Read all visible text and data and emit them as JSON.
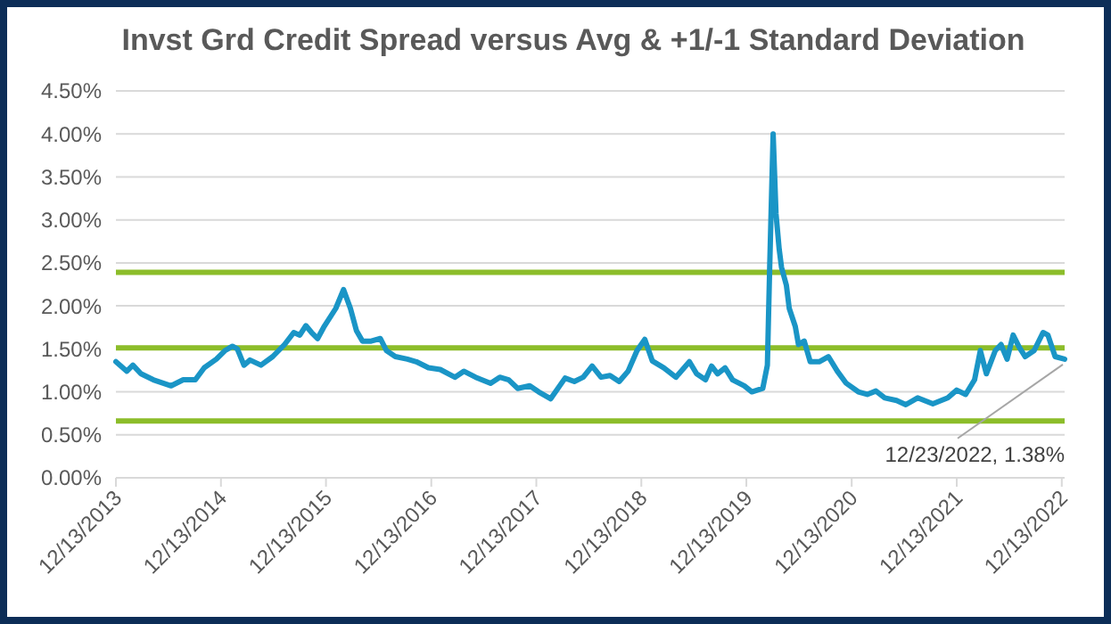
{
  "chart_data": {
    "type": "line",
    "title": "Invst Grd Credit Spread versus Avg & +1/-1 Standard Deviation",
    "x": [
      "2013-12-13",
      "2014-01-20",
      "2014-02-10",
      "2014-03-10",
      "2014-04-22",
      "2014-06-23",
      "2014-08-04",
      "2014-09-15",
      "2014-10-16",
      "2014-11-27",
      "2014-12-27",
      "2015-01-22",
      "2015-02-08",
      "2015-03-03",
      "2015-03-24",
      "2015-05-01",
      "2015-06-11",
      "2015-07-22",
      "2015-08-23",
      "2015-09-13",
      "2015-10-04",
      "2015-10-24",
      "2015-11-14",
      "2015-12-05",
      "2016-01-16",
      "2016-02-12",
      "2016-03-07",
      "2016-03-28",
      "2016-04-18",
      "2016-05-18",
      "2016-06-19",
      "2016-07-10",
      "2016-08-10",
      "2016-09-21",
      "2016-10-22",
      "2016-12-03",
      "2017-01-13",
      "2017-03-05",
      "2017-04-05",
      "2017-05-16",
      "2017-07-07",
      "2017-08-08",
      "2017-09-08",
      "2017-10-09",
      "2017-11-20",
      "2017-12-21",
      "2018-02-01",
      "2018-03-23",
      "2018-04-24",
      "2018-05-25",
      "2018-06-25",
      "2018-07-26",
      "2018-08-26",
      "2018-09-27",
      "2018-10-28",
      "2018-11-28",
      "2018-12-25",
      "2019-01-20",
      "2019-03-01",
      "2019-04-12",
      "2019-05-29",
      "2019-06-23",
      "2019-07-24",
      "2019-08-14",
      "2019-09-04",
      "2019-09-30",
      "2019-10-26",
      "2019-12-06",
      "2020-01-01",
      "2020-02-08",
      "2020-02-24",
      "2020-03-03",
      "2020-03-15",
      "2020-03-25",
      "2020-04-05",
      "2020-04-13",
      "2020-04-30",
      "2020-05-10",
      "2020-05-31",
      "2020-06-11",
      "2020-07-01",
      "2020-07-22",
      "2020-08-22",
      "2020-09-23",
      "2020-10-24",
      "2020-11-24",
      "2021-01-05",
      "2021-02-05",
      "2021-03-07",
      "2021-04-07",
      "2021-05-18",
      "2021-06-19",
      "2021-07-30",
      "2021-09-21",
      "2021-11-12",
      "2021-12-13",
      "2022-01-13",
      "2022-02-13",
      "2022-03-05",
      "2022-03-26",
      "2022-04-26",
      "2022-05-16",
      "2022-06-06",
      "2022-06-27",
      "2022-07-18",
      "2022-08-08",
      "2022-09-08",
      "2022-10-09",
      "2022-10-26",
      "2022-11-20",
      "2022-12-23"
    ],
    "series": [
      {
        "color": "#1a95c6",
        "values": [
          1.35,
          1.24,
          1.31,
          1.21,
          1.14,
          1.07,
          1.14,
          1.14,
          1.28,
          1.38,
          1.48,
          1.53,
          1.5,
          1.31,
          1.37,
          1.31,
          1.41,
          1.55,
          1.69,
          1.66,
          1.77,
          1.69,
          1.62,
          1.75,
          1.97,
          2.19,
          1.97,
          1.71,
          1.59,
          1.59,
          1.62,
          1.48,
          1.41,
          1.38,
          1.35,
          1.28,
          1.26,
          1.17,
          1.24,
          1.17,
          1.1,
          1.17,
          1.14,
          1.04,
          1.07,
          1.0,
          0.92,
          1.16,
          1.12,
          1.17,
          1.3,
          1.17,
          1.19,
          1.12,
          1.24,
          1.48,
          1.61,
          1.36,
          1.28,
          1.17,
          1.35,
          1.21,
          1.14,
          1.3,
          1.21,
          1.28,
          1.14,
          1.07,
          1.0,
          1.04,
          1.31,
          2.45,
          4.0,
          3.07,
          2.66,
          2.45,
          2.24,
          1.97,
          1.76,
          1.55,
          1.59,
          1.35,
          1.35,
          1.41,
          1.24,
          1.1,
          1.0,
          0.97,
          1.01,
          0.93,
          0.9,
          0.85,
          0.93,
          0.86,
          0.93,
          1.02,
          0.97,
          1.14,
          1.48,
          1.21,
          1.48,
          1.55,
          1.38,
          1.66,
          1.52,
          1.41,
          1.48,
          1.69,
          1.66,
          1.41,
          1.38
        ]
      }
    ],
    "xlim": [
      "2013-12-13",
      "2022-12-23"
    ],
    "xticks": [
      {
        "value": "2013-12-13",
        "label": "12/13/2013"
      },
      {
        "value": "2014-12-13",
        "label": "12/13/2014"
      },
      {
        "value": "2015-12-13",
        "label": "12/13/2015"
      },
      {
        "value": "2016-12-13",
        "label": "12/13/2016"
      },
      {
        "value": "2017-12-13",
        "label": "12/13/2017"
      },
      {
        "value": "2018-12-13",
        "label": "12/13/2018"
      },
      {
        "value": "2019-12-13",
        "label": "12/13/2019"
      },
      {
        "value": "2020-12-13",
        "label": "12/13/2020"
      },
      {
        "value": "2021-12-13",
        "label": "12/13/2021"
      },
      {
        "value": "2022-12-13",
        "label": "12/13/2022"
      }
    ],
    "ylim": [
      0,
      4.5
    ],
    "yticks": [
      {
        "value": 0,
        "label": "0.00%"
      },
      {
        "value": 0.5,
        "label": "0.50%"
      },
      {
        "value": 1,
        "label": "1.00%"
      },
      {
        "value": 1.5,
        "label": "1.50%"
      },
      {
        "value": 2,
        "label": "2.00%"
      },
      {
        "value": 2.5,
        "label": "2.50%"
      },
      {
        "value": 3,
        "label": "3.00%"
      },
      {
        "value": 3.5,
        "label": "3.50%"
      },
      {
        "value": 4,
        "label": "4.00%"
      },
      {
        "value": 4.5,
        "label": "4.50%"
      }
    ],
    "grid": "y",
    "ref_lines": [
      {
        "axis": "y",
        "value": 2.39,
        "color": "#8cbd2a"
      },
      {
        "axis": "y",
        "value": 1.51,
        "color": "#8cbd2a"
      },
      {
        "axis": "y",
        "value": 0.66,
        "color": "#8cbd2a"
      }
    ],
    "annotations": [
      {
        "text": "12/23/2022, 1.38%",
        "x": "2022-12-23",
        "y": 1.38
      }
    ]
  }
}
